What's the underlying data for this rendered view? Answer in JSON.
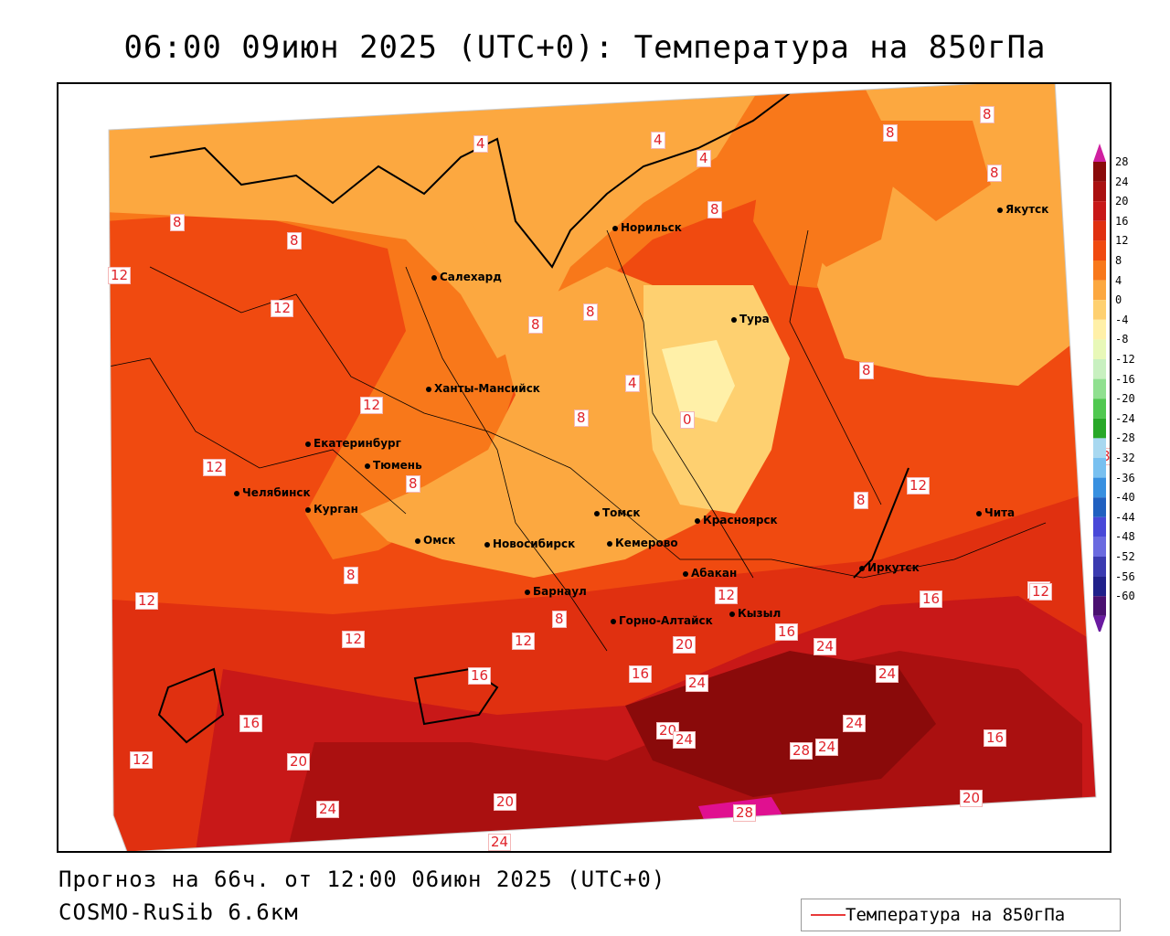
{
  "title": "06:00 09июн 2025 (UTC+0): Температура на 850гПа",
  "forecast_line": "Прогноз на 66ч. от 12:00 06июн 2025 (UTC+0)",
  "model_line": "COSMO-RuSib 6.6км",
  "legend": {
    "label": "Температура на 850гПа",
    "color": "#e83a3a"
  },
  "colorbar": {
    "labels": [
      "28",
      "24",
      "20",
      "16",
      "12",
      "8",
      "4",
      "0",
      "-4",
      "-8",
      "-12",
      "-16",
      "-20",
      "-24",
      "-28",
      "-32",
      "-36",
      "-40",
      "-44",
      "-48",
      "-52",
      "-56",
      "-60"
    ],
    "colors": [
      "#8a0a0a",
      "#aa1010",
      "#c81818",
      "#e03010",
      "#f04a10",
      "#f8781a",
      "#fca840",
      "#fed070",
      "#fff0a8",
      "#e8f8b8",
      "#c8f0c0",
      "#90e090",
      "#50c850",
      "#28a828",
      "#a8d8f0",
      "#78c0f0",
      "#3890e0",
      "#2060c0",
      "#4848d8",
      "#6a6ae0",
      "#3a3ab0",
      "#20208a",
      "#4a1070"
    ]
  },
  "cities": [
    {
      "name": "Норильск"
    },
    {
      "name": "Якутск"
    },
    {
      "name": "Салехард"
    },
    {
      "name": "Тура"
    },
    {
      "name": "Ханты-Мансийск"
    },
    {
      "name": "Екатеринбург"
    },
    {
      "name": "Тюмень"
    },
    {
      "name": "Челябинск"
    },
    {
      "name": "Курган"
    },
    {
      "name": "Омск"
    },
    {
      "name": "Новосибирск"
    },
    {
      "name": "Томск"
    },
    {
      "name": "Кемерово"
    },
    {
      "name": "Красноярск"
    },
    {
      "name": "Абакан"
    },
    {
      "name": "Барнаул"
    },
    {
      "name": "Горно-Алтайск"
    },
    {
      "name": "Кызыл"
    },
    {
      "name": "Иркутск"
    },
    {
      "name": "Чита"
    }
  ],
  "isotherm_labels": [
    "4",
    "4",
    "4",
    "8",
    "8",
    "8",
    "8",
    "8",
    "8",
    "12",
    "12",
    "8",
    "8",
    "8",
    "4",
    "0",
    "8",
    "12",
    "8",
    "8",
    "12",
    "12",
    "8",
    "12",
    "8",
    "12",
    "12",
    "16",
    "12",
    "12",
    "16",
    "12",
    "16",
    "20",
    "24",
    "24",
    "16",
    "24",
    "20",
    "24",
    "24",
    "28",
    "24",
    "16",
    "20",
    "20",
    "24",
    "28",
    "20",
    "16",
    "12",
    "24",
    "8"
  ]
}
